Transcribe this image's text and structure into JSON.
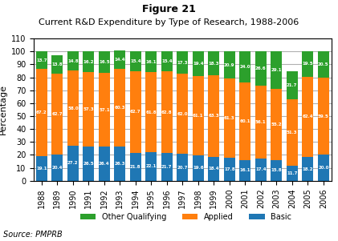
{
  "chart_data": {
    "type": "bar",
    "title": "Figure 21",
    "subtitle": "Current R&D Expenditure by Type of Research, 1988-2006",
    "y_label": "Percentage",
    "source": "Source: PMPRB",
    "categories": [
      "1988",
      "1989",
      "1990",
      "1991",
      "1992",
      "1993",
      "1994",
      "1995",
      "1996",
      "1997",
      "1998",
      "1999",
      "2000",
      "2001",
      "2002",
      "2003",
      "2004",
      "2005",
      "2006"
    ],
    "series": [
      {
        "name": "Basic",
        "values": [
          19.1,
          20.4,
          27.2,
          26.5,
          26.4,
          26.3,
          21.8,
          22.1,
          21.7,
          20.7,
          19.6,
          18.4,
          17.8,
          16.1,
          17.4,
          15.8,
          11.7,
          18.2,
          20.0
        ]
      },
      {
        "name": "Applied",
        "values": [
          67.2,
          62.7,
          58.0,
          57.3,
          57.1,
          60.3,
          62.7,
          61.8,
          62.8,
          62.0,
          61.1,
          63.3,
          61.3,
          60.1,
          56.1,
          55.2,
          51.3,
          62.4,
          59.5
        ]
      },
      {
        "name": "Other Qualifying",
        "values": [
          13.7,
          13.8,
          14.8,
          16.2,
          16.5,
          14.4,
          15.4,
          16.1,
          15.4,
          17.3,
          19.4,
          18.3,
          20.9,
          24.0,
          26.6,
          29.1,
          21.7,
          19.5,
          20.5
        ]
      }
    ],
    "stacked": true,
    "data_labels": true,
    "ylim": [
      0,
      110
    ],
    "yticks": [
      0,
      10,
      20,
      30,
      40,
      50,
      60,
      70,
      80,
      90,
      100,
      110
    ],
    "grid": true,
    "legend": "lower center"
  }
}
